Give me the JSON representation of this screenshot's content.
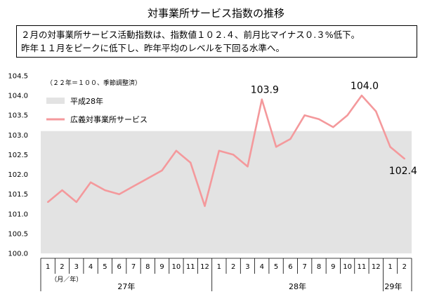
{
  "title": "対事業所サービス指数の推移",
  "summary": {
    "line1": "２月の対事業所サービス活動指数は、指数値１０２.４、前月比マイナス０.３%低下。",
    "line2": "昨年１１月をピークに低下し、昨年平均のレベルを下回る水準へ。"
  },
  "chart_data": {
    "type": "line",
    "note": "（２２年＝１００、季節調整済）",
    "axis_unit_label": "（月／年）",
    "categories": [
      "1",
      "2",
      "3",
      "4",
      "5",
      "6",
      "7",
      "8",
      "9",
      "10",
      "11",
      "12",
      "1",
      "2",
      "3",
      "4",
      "5",
      "6",
      "7",
      "8",
      "9",
      "10",
      "11",
      "12",
      "1",
      "2"
    ],
    "year_groups": [
      {
        "label": "27年",
        "start": 0,
        "end": 11
      },
      {
        "label": "28年",
        "start": 12,
        "end": 23
      },
      {
        "label": "29年",
        "start": 24,
        "end": 25
      }
    ],
    "ylim": [
      100.0,
      104.5
    ],
    "yticks": [
      "100.0",
      "100.5",
      "101.0",
      "101.5",
      "102.0",
      "102.5",
      "103.0",
      "103.5",
      "104.0",
      "104.5"
    ],
    "series": [
      {
        "name": "広義対事業所サービス",
        "color": "#f4999c",
        "values": [
          101.3,
          101.6,
          101.3,
          101.8,
          101.6,
          101.5,
          101.7,
          101.9,
          102.1,
          102.6,
          102.3,
          101.2,
          102.6,
          102.5,
          102.2,
          103.9,
          102.7,
          102.9,
          103.5,
          103.4,
          103.2,
          103.5,
          104.0,
          103.6,
          102.7,
          102.4
        ]
      }
    ],
    "band": {
      "name": "平成28年",
      "value": 103.1,
      "color": "#e3e3e3"
    },
    "data_labels": [
      {
        "index": 15,
        "text": "103.9"
      },
      {
        "index": 22,
        "text": "104.0"
      },
      {
        "index": 25,
        "text": "102.4"
      }
    ]
  }
}
